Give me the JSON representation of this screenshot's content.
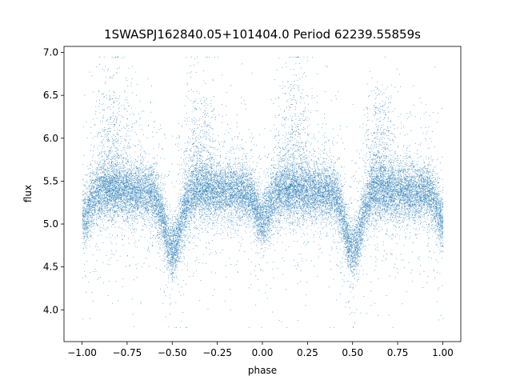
{
  "chart_data": {
    "type": "scatter",
    "title": "1SWASPJ162840.05+101404.0 Period 62239.55859s",
    "xlabel": "phase",
    "ylabel": "flux",
    "xlim": [
      -1.1,
      1.1
    ],
    "ylim": [
      3.63,
      7.07
    ],
    "x_ticks": [
      -1.0,
      -0.75,
      -0.5,
      -0.25,
      0.0,
      0.25,
      0.5,
      0.75,
      1.0
    ],
    "x_tick_labels": [
      "−1.00",
      "−0.75",
      "−0.50",
      "−0.25",
      "0.00",
      "0.25",
      "0.50",
      "0.75",
      "1.00"
    ],
    "y_ticks": [
      4.0,
      4.5,
      5.0,
      5.5,
      6.0,
      6.5,
      7.0
    ],
    "y_tick_labels": [
      "4.0",
      "4.5",
      "5.0",
      "5.5",
      "6.0",
      "6.5",
      "7.0"
    ],
    "grid": false,
    "marker_color": "#1f77b4",
    "series": [
      {
        "phase_range": [
          -1.0,
          1.0
        ],
        "baseline_flux": 5.38,
        "flux_scatter_sigma": 0.17,
        "flux_range": [
          3.8,
          6.95
        ],
        "primary_minimum": {
          "phases": [
            -0.5,
            0.5
          ],
          "flux": 4.7,
          "width": 0.045
        },
        "secondary_minimum": {
          "phases": [
            0.0,
            -1.0,
            1.0
          ],
          "flux": 5.05,
          "width": 0.035
        },
        "flux_enhancements": [
          {
            "phase": -0.83,
            "flux": 6.3
          },
          {
            "phase": 0.17,
            "flux": 6.3
          },
          {
            "phase": -0.35,
            "flux": 6.1
          },
          {
            "phase": 0.65,
            "flux": 6.1
          }
        ]
      }
    ]
  }
}
